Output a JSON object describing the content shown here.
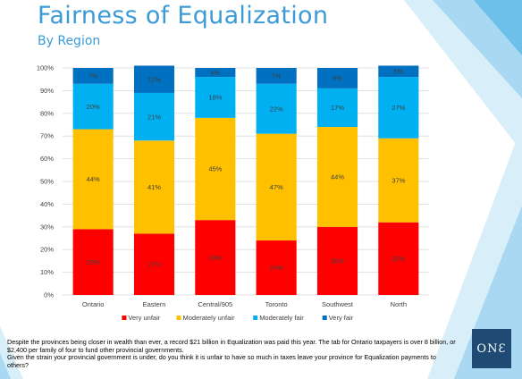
{
  "slide": {
    "title": "Fairness of Equalization",
    "subtitle": "By Region",
    "note_line1": "Despite the provinces being closer in wealth than ever, a record $21 billion in Equalization was paid this year.  The tab for Ontario taxpayers is over 8 billion, or $2,400 per family of four to fund other provincial governments.",
    "note_line2": "Given the strain your provincial government is under, do you think it is unfair to have so much in taxes leave your province for Equalization payments to others?",
    "logo": "ONƐ"
  },
  "colors": {
    "very_unfair": "#ff0000",
    "moderately_unfair": "#ffc000",
    "moderately_fair": "#00b0f0",
    "very_fair": "#0070c0",
    "title": "#3b9bd6"
  },
  "chart_data": {
    "type": "bar",
    "stacked": true,
    "categories": [
      "Ontario",
      "Eastern",
      "Central/905",
      "Toronto",
      "Southwest",
      "North"
    ],
    "series": [
      {
        "name": "Very unfair",
        "color": "#ff0000",
        "values": [
          29,
          27,
          33,
          24,
          30,
          32
        ]
      },
      {
        "name": "Moderately unfair",
        "color": "#ffc000",
        "values": [
          44,
          41,
          45,
          47,
          44,
          37
        ]
      },
      {
        "name": "Moderately fair",
        "color": "#00b0f0",
        "values": [
          20,
          21,
          18,
          22,
          17,
          27
        ]
      },
      {
        "name": "Very fair",
        "color": "#0070c0",
        "values": [
          7,
          12,
          4,
          7,
          9,
          5
        ]
      }
    ],
    "value_suffix": "%",
    "ylim": [
      0,
      100
    ],
    "yticks": [
      "0%",
      "10%",
      "20%",
      "30%",
      "40%",
      "50%",
      "60%",
      "70%",
      "80%",
      "90%",
      "100%"
    ],
    "ytick_values": [
      0,
      10,
      20,
      30,
      40,
      50,
      60,
      70,
      80,
      90,
      100
    ],
    "grid": true,
    "legend_position": "bottom"
  }
}
